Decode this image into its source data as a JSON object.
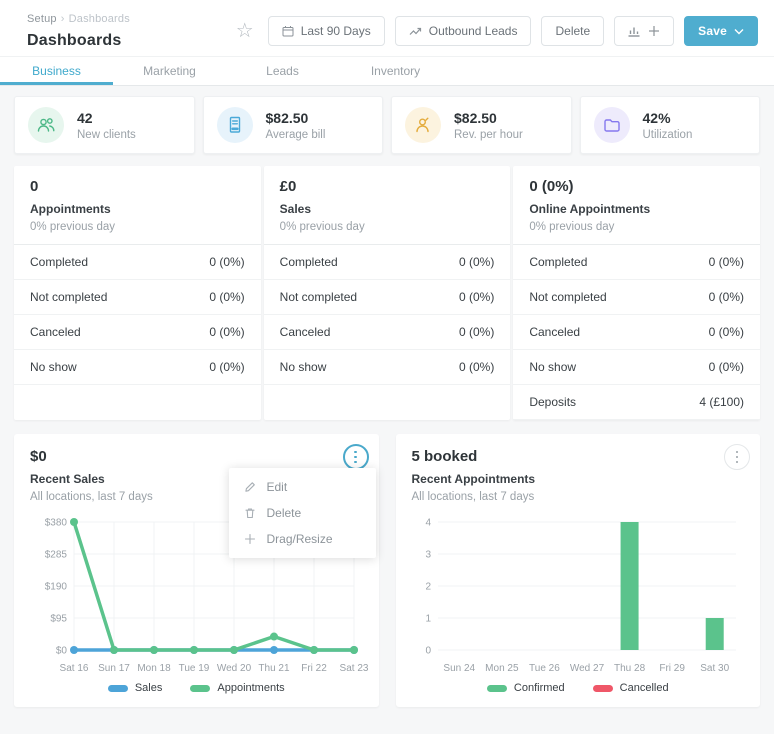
{
  "colors": {
    "accent_teal": "#4fadcf",
    "green": "#5bc38c",
    "blue": "#4da4d8",
    "red": "#ef5768",
    "yellow": "#e4ac3d",
    "purple": "#8578ee"
  },
  "header": {
    "breadcrumb": [
      "Setup",
      "Dashboards"
    ],
    "title": "Dashboards",
    "date_range_button": "Last 90 Days",
    "outbound_leads_button": "Outbound Leads",
    "delete_button": "Delete",
    "save_button": "Save"
  },
  "tabs": [
    {
      "label": "Business",
      "active": true
    },
    {
      "label": "Marketing",
      "active": false
    },
    {
      "label": "Leads",
      "active": false
    },
    {
      "label": "Inventory",
      "active": false
    }
  ],
  "stat_cards": [
    {
      "value": "42",
      "label": "New clients",
      "icon": "people-icon"
    },
    {
      "value": "$82.50",
      "label": "Average bill",
      "icon": "receipt-icon"
    },
    {
      "value": "$82.50",
      "label": "Rev. per hour",
      "icon": "person-icon"
    },
    {
      "value": "42%",
      "label": "Utilization",
      "icon": "folder-icon"
    }
  ],
  "summary_cards": [
    {
      "headline": "0",
      "title": "Appointments",
      "subtitle": "0% previous day",
      "rows": [
        [
          "Completed",
          "0 (0%)"
        ],
        [
          "Not completed",
          "0 (0%)"
        ],
        [
          "Canceled",
          "0 (0%)"
        ],
        [
          "No show",
          "0 (0%)"
        ]
      ]
    },
    {
      "headline": "£0",
      "title": "Sales",
      "subtitle": "0% previous day",
      "rows": [
        [
          "Completed",
          "0 (0%)"
        ],
        [
          "Not completed",
          "0 (0%)"
        ],
        [
          "Canceled",
          "0 (0%)"
        ],
        [
          "No show",
          "0 (0%)"
        ]
      ]
    },
    {
      "headline": "0 (0%)",
      "title": "Online Appointments",
      "subtitle": "0% previous day",
      "rows": [
        [
          "Completed",
          "0 (0%)"
        ],
        [
          "Not completed",
          "0 (0%)"
        ],
        [
          "Canceled",
          "0 (0%)"
        ],
        [
          "No show",
          "0 (0%)"
        ],
        [
          "Deposits",
          "4 (£100)"
        ]
      ]
    }
  ],
  "context_menu": {
    "items": [
      {
        "icon": "edit-icon",
        "label": "Edit"
      },
      {
        "icon": "trash-icon",
        "label": "Delete"
      },
      {
        "icon": "move-icon",
        "label": "Drag/Resize"
      }
    ]
  },
  "chart_data": [
    {
      "type": "line",
      "headline": "$0",
      "title": "Recent Sales",
      "subtitle": "All locations, last 7 days",
      "categories": [
        "Sat 16",
        "Sun 17",
        "Mon 18",
        "Tue 19",
        "Wed 20",
        "Thu 21",
        "Fri 22",
        "Sat 23"
      ],
      "y_tick_labels": [
        "$380",
        "$285",
        "$190",
        "$95",
        "$0"
      ],
      "y_tick_values": [
        380,
        285,
        190,
        95,
        0
      ],
      "ylim": [
        0,
        380
      ],
      "grid": true,
      "legend_position": "bottom",
      "series": [
        {
          "name": "Sales",
          "color": "#4da4d8",
          "values": [
            0,
            0,
            0,
            0,
            0,
            0,
            0,
            0
          ]
        },
        {
          "name": "Appointments",
          "color": "#5bc38c",
          "values": [
            380,
            0,
            0,
            0,
            0,
            40,
            0,
            0
          ]
        }
      ]
    },
    {
      "type": "bar",
      "headline": "5 booked",
      "title": "Recent Appointments",
      "subtitle": "All locations, last 7 days",
      "categories": [
        "Sun 24",
        "Mon 25",
        "Tue 26",
        "Wed 27",
        "Thu 28",
        "Fri 29",
        "Sat 30"
      ],
      "y_tick_labels": [
        "4",
        "3",
        "2",
        "1",
        "0"
      ],
      "y_tick_values": [
        4,
        3,
        2,
        1,
        0
      ],
      "ylim": [
        0,
        4
      ],
      "grid": true,
      "legend_position": "bottom",
      "series": [
        {
          "name": "Confirmed",
          "color": "#5bc38c",
          "values": [
            0,
            0,
            0,
            0,
            4,
            0,
            1
          ]
        },
        {
          "name": "Cancelled",
          "color": "#ef5768",
          "values": [
            0,
            0,
            0,
            0,
            0,
            0,
            0
          ]
        }
      ]
    }
  ]
}
